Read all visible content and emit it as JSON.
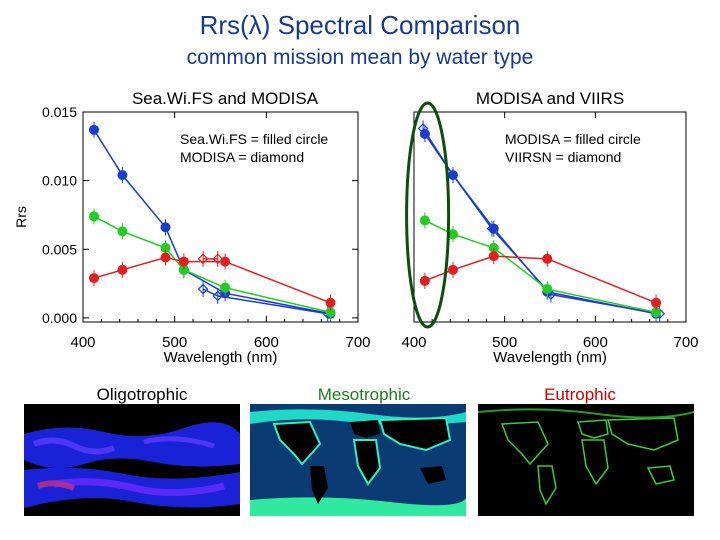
{
  "header": {
    "title": "Rrs(λ) Spectral Comparison",
    "subtitle": "common mission mean by water type"
  },
  "water_types": [
    "Oligotrophic",
    "Mesotrophic",
    "Eutrophic"
  ],
  "colors": {
    "oligotrophic": "#1a3ccf",
    "mesotrophic": "#22cc22",
    "eutrophic": "#e02020",
    "highlight": "#0f4d0f"
  },
  "chart_data": [
    {
      "type": "line",
      "title": "Sea.Wi.FS and MODISA",
      "xlabel": "Wavelength (nm)",
      "ylabel": "Rrs",
      "xlim": [
        400,
        700
      ],
      "ylim": [
        -0.0003,
        0.015
      ],
      "xticks": [
        400,
        500,
        600,
        700
      ],
      "yticks": [
        0.0,
        0.005,
        0.01,
        0.015
      ],
      "ytick_labels": [
        "0.000",
        "0.005",
        "0.010",
        "0.015"
      ],
      "legend_lines": [
        "Sea.Wi.FS = filled circle",
        "MODISA  = diamond"
      ],
      "series": [
        {
          "name": "oligotrophic",
          "color": "#1a3ccf",
          "marker": "circle",
          "x": [
            412,
            443,
            490,
            510,
            555,
            670
          ],
          "y": [
            0.0137,
            0.0104,
            0.0066,
            0.0035,
            0.0018,
            0.0003
          ]
        },
        {
          "name": "oligotrophic",
          "color": "#1a3ccf",
          "marker": "diamond",
          "x": [
            531,
            547,
            667
          ],
          "y": [
            0.0021,
            0.0016,
            0.0003
          ]
        },
        {
          "name": "mesotrophic",
          "color": "#22cc22",
          "marker": "circle",
          "x": [
            412,
            443,
            490,
            510,
            555,
            670
          ],
          "y": [
            0.0074,
            0.0063,
            0.0051,
            0.0035,
            0.0022,
            0.0004
          ]
        },
        {
          "name": "eutrophic",
          "color": "#e02020",
          "marker": "circle",
          "x": [
            412,
            443,
            490,
            510,
            555,
            670
          ],
          "y": [
            0.0029,
            0.0035,
            0.0044,
            0.0041,
            0.0041,
            0.0011
          ]
        },
        {
          "name": "eutrophic",
          "color": "#e02020",
          "marker": "diamond",
          "x": [
            531,
            547
          ],
          "y": [
            0.0043,
            0.0043
          ]
        }
      ]
    },
    {
      "type": "line",
      "title": "MODISA and VIIRS",
      "xlabel": "Wavelength (nm)",
      "ylabel": "",
      "xlim": [
        400,
        700
      ],
      "ylim": [
        -0.0003,
        0.015
      ],
      "xticks": [
        400,
        500,
        600,
        700
      ],
      "legend_lines": [
        "MODISA  = filled circle",
        "VIIRSN    = diamond"
      ],
      "series": [
        {
          "name": "oligotrophic",
          "color": "#1a3ccf",
          "marker": "circle",
          "x": [
            412,
            443,
            488,
            547,
            667
          ],
          "y": [
            0.0134,
            0.0104,
            0.0065,
            0.0019,
            0.0003
          ]
        },
        {
          "name": "oligotrophic",
          "color": "#1a3ccf",
          "marker": "diamond",
          "x": [
            410,
            443,
            486,
            551,
            671
          ],
          "y": [
            0.0138,
            0.0104,
            0.0065,
            0.0017,
            0.0003
          ]
        },
        {
          "name": "mesotrophic",
          "color": "#22cc22",
          "marker": "circle",
          "x": [
            412,
            443,
            488,
            547,
            667
          ],
          "y": [
            0.0071,
            0.0061,
            0.0051,
            0.0021,
            0.0004
          ]
        },
        {
          "name": "eutrophic",
          "color": "#e02020",
          "marker": "circle",
          "x": [
            412,
            443,
            488,
            547,
            667
          ],
          "y": [
            0.0027,
            0.0035,
            0.0045,
            0.0043,
            0.0011
          ]
        }
      ]
    }
  ]
}
